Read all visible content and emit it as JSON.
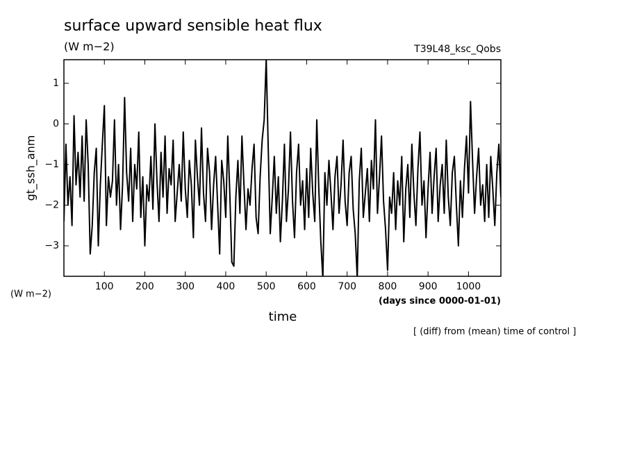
{
  "chart_data": {
    "type": "line",
    "title": "surface upward sensible heat flux",
    "units": "(W m−2)",
    "run_label": "T39L48_ksc_Qobs",
    "y_label": "gt_ssh_anm",
    "y_units": "(W m−2)",
    "x_label": "time",
    "x_units": "(days since 0000-01-01)",
    "note": "[ (diff) from (mean) time of control ]",
    "xlim": [
      0,
      1080
    ],
    "ylim": [
      -3.75,
      1.58
    ],
    "xticks": [
      100,
      200,
      300,
      400,
      500,
      600,
      700,
      800,
      900,
      1000
    ],
    "yticks": [
      1,
      0,
      {
        "value": -1,
        "label": "−1"
      },
      {
        "value": -2,
        "label": "−2"
      },
      {
        "value": -3,
        "label": "−3"
      }
    ],
    "x": [
      0,
      5,
      10,
      15,
      20,
      25,
      30,
      35,
      40,
      45,
      50,
      55,
      60,
      65,
      70,
      75,
      80,
      85,
      90,
      95,
      100,
      105,
      110,
      115,
      120,
      125,
      130,
      135,
      140,
      145,
      150,
      155,
      160,
      165,
      170,
      175,
      180,
      185,
      190,
      195,
      200,
      205,
      210,
      215,
      220,
      225,
      230,
      235,
      240,
      245,
      250,
      255,
      260,
      265,
      270,
      275,
      280,
      285,
      290,
      295,
      300,
      305,
      310,
      315,
      320,
      325,
      330,
      335,
      340,
      345,
      350,
      355,
      360,
      365,
      370,
      375,
      380,
      385,
      390,
      395,
      400,
      405,
      410,
      415,
      420,
      425,
      430,
      435,
      440,
      445,
      450,
      455,
      460,
      465,
      470,
      475,
      480,
      485,
      490,
      495,
      500,
      505,
      510,
      515,
      520,
      525,
      530,
      535,
      540,
      545,
      550,
      555,
      560,
      565,
      570,
      575,
      580,
      585,
      590,
      595,
      600,
      605,
      610,
      615,
      620,
      625,
      630,
      635,
      640,
      645,
      650,
      655,
      660,
      665,
      670,
      675,
      680,
      685,
      690,
      695,
      700,
      705,
      710,
      715,
      720,
      725,
      730,
      735,
      740,
      745,
      750,
      755,
      760,
      765,
      770,
      775,
      780,
      785,
      790,
      795,
      800,
      805,
      810,
      815,
      820,
      825,
      830,
      835,
      840,
      845,
      850,
      855,
      860,
      865,
      870,
      875,
      880,
      885,
      890,
      895,
      900,
      905,
      910,
      915,
      920,
      925,
      930,
      935,
      940,
      945,
      950,
      955,
      960,
      965,
      970,
      975,
      980,
      985,
      990,
      995,
      1000,
      1005,
      1010,
      1015,
      1020,
      1025,
      1030,
      1035,
      1040,
      1045,
      1050,
      1055,
      1060,
      1065,
      1070,
      1075,
      1080
    ],
    "series": [
      {
        "name": "gt_ssh_anm",
        "color": "#000000",
        "values": [
          -2.4,
          -0.5,
          -2.0,
          -1.3,
          -2.5,
          0.2,
          -1.5,
          -0.7,
          -1.8,
          -0.3,
          -1.9,
          0.1,
          -1.0,
          -3.2,
          -2.5,
          -1.2,
          -0.6,
          -3.0,
          -1.5,
          -0.5,
          0.45,
          -2.5,
          -1.3,
          -1.8,
          -1.4,
          0.1,
          -2.0,
          -1.0,
          -2.6,
          -1.5,
          0.65,
          -1.2,
          -1.9,
          -0.6,
          -2.4,
          -1.0,
          -1.6,
          -0.2,
          -2.3,
          -1.3,
          -3.0,
          -1.5,
          -1.9,
          -0.8,
          -2.1,
          0.0,
          -1.4,
          -2.4,
          -0.7,
          -1.8,
          -0.3,
          -2.2,
          -1.1,
          -1.5,
          -0.4,
          -2.4,
          -1.7,
          -1.0,
          -1.9,
          -0.2,
          -1.6,
          -2.3,
          -0.9,
          -1.5,
          -2.8,
          -0.4,
          -1.3,
          -2.0,
          -0.1,
          -1.7,
          -2.4,
          -0.6,
          -1.2,
          -2.6,
          -1.5,
          -0.8,
          -2.0,
          -3.2,
          -0.9,
          -1.4,
          -2.3,
          -0.3,
          -1.7,
          -3.4,
          -3.5,
          -1.8,
          -0.9,
          -2.2,
          -0.3,
          -1.5,
          -2.6,
          -1.6,
          -2.0,
          -1.1,
          -0.5,
          -2.3,
          -2.7,
          -1.3,
          -0.4,
          0.1,
          1.6,
          -0.6,
          -2.7,
          -1.8,
          -0.8,
          -2.2,
          -1.3,
          -2.9,
          -1.9,
          -0.5,
          -2.4,
          -1.6,
          -0.2,
          -1.9,
          -2.8,
          -1.2,
          -0.5,
          -2.0,
          -1.4,
          -2.6,
          -1.1,
          -2.3,
          -0.6,
          -1.7,
          -2.4,
          0.1,
          -1.6,
          -2.9,
          -3.8,
          -1.2,
          -2.0,
          -0.9,
          -1.7,
          -2.6,
          -1.3,
          -0.8,
          -2.2,
          -1.5,
          -0.4,
          -1.9,
          -2.5,
          -1.2,
          -0.8,
          -2.1,
          -2.7,
          -3.8,
          -1.4,
          -0.6,
          -2.3,
          -1.7,
          -1.1,
          -2.4,
          -0.9,
          -1.6,
          0.1,
          -2.2,
          -1.3,
          -0.3,
          -1.9,
          -2.6,
          -3.6,
          -1.8,
          -2.2,
          -1.2,
          -2.6,
          -1.4,
          -2.0,
          -0.8,
          -2.9,
          -1.6,
          -1.0,
          -2.3,
          -0.5,
          -1.7,
          -2.5,
          -1.1,
          -0.2,
          -2.0,
          -1.4,
          -2.8,
          -1.6,
          -0.7,
          -2.2,
          -1.3,
          -0.6,
          -2.4,
          -1.5,
          -1.0,
          -2.2,
          -0.4,
          -1.8,
          -2.5,
          -1.2,
          -0.8,
          -2.0,
          -3.0,
          -1.4,
          -2.3,
          -1.1,
          -0.3,
          -1.7,
          0.55,
          -0.9,
          -2.2,
          -1.3,
          -0.6,
          -2.0,
          -1.5,
          -2.4,
          -1.0,
          -2.3,
          -0.8,
          -1.6,
          -2.5,
          -1.2,
          -0.5,
          -1.8
        ]
      }
    ]
  }
}
